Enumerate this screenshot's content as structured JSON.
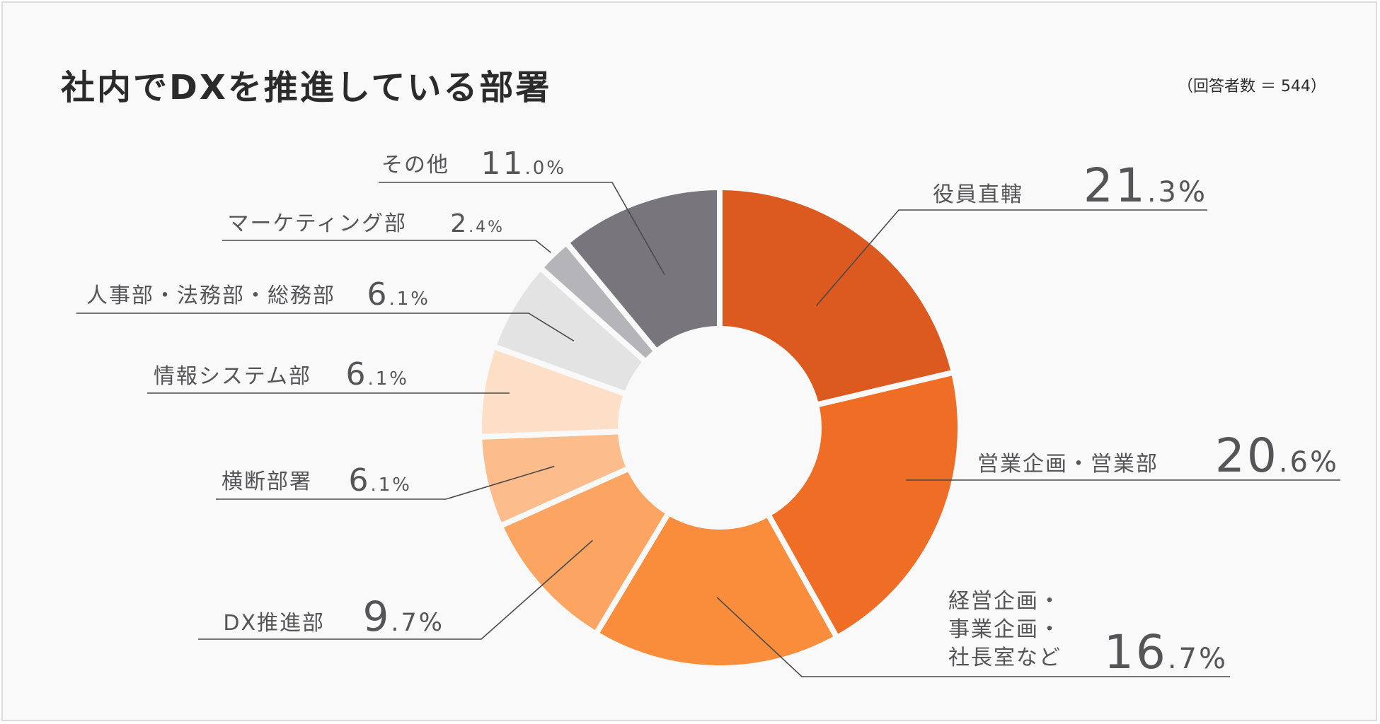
{
  "title": "社内でDXを推進している部署",
  "respondents": "（回答者数 ＝ 544）",
  "chart_data": {
    "type": "pie",
    "variant": "donut",
    "title": "社内でDXを推進している部署",
    "unit": "%",
    "slices": [
      {
        "label": "役員直轄",
        "lines": [
          "役員直轄"
        ],
        "value": 21.3,
        "color": "#dc5a20"
      },
      {
        "label": "営業企画・営業部",
        "lines": [
          "営業企画・営業部"
        ],
        "value": 20.6,
        "color": "#ef6d24"
      },
      {
        "label": "経営企画・事業企画・社長室など",
        "lines": [
          "経営企画・",
          "事業企画・",
          "社長室など"
        ],
        "value": 16.7,
        "color": "#fa8d3c"
      },
      {
        "label": "DX推進部",
        "lines": [
          "DX推進部"
        ],
        "value": 9.7,
        "color": "#fca462"
      },
      {
        "label": "横断部署",
        "lines": [
          "横断部署"
        ],
        "value": 6.1,
        "color": "#fdbc8c"
      },
      {
        "label": "情報システム部",
        "lines": [
          "情報システム部"
        ],
        "value": 6.1,
        "color": "#fddfc8"
      },
      {
        "label": "人事部・法務部・総務部",
        "lines": [
          "人事部・法務部・総務部"
        ],
        "value": 6.1,
        "color": "#e3e3e3"
      },
      {
        "label": "マーケティング部",
        "lines": [
          "マーケティング部"
        ],
        "value": 2.4,
        "color": "#b5b4b8"
      },
      {
        "label": "その他",
        "lines": [
          "その他"
        ],
        "value": 11.0,
        "color": "#78767c"
      }
    ]
  },
  "colors": {
    "label_text": "#555558",
    "leader_line": "#4a4a4a"
  }
}
